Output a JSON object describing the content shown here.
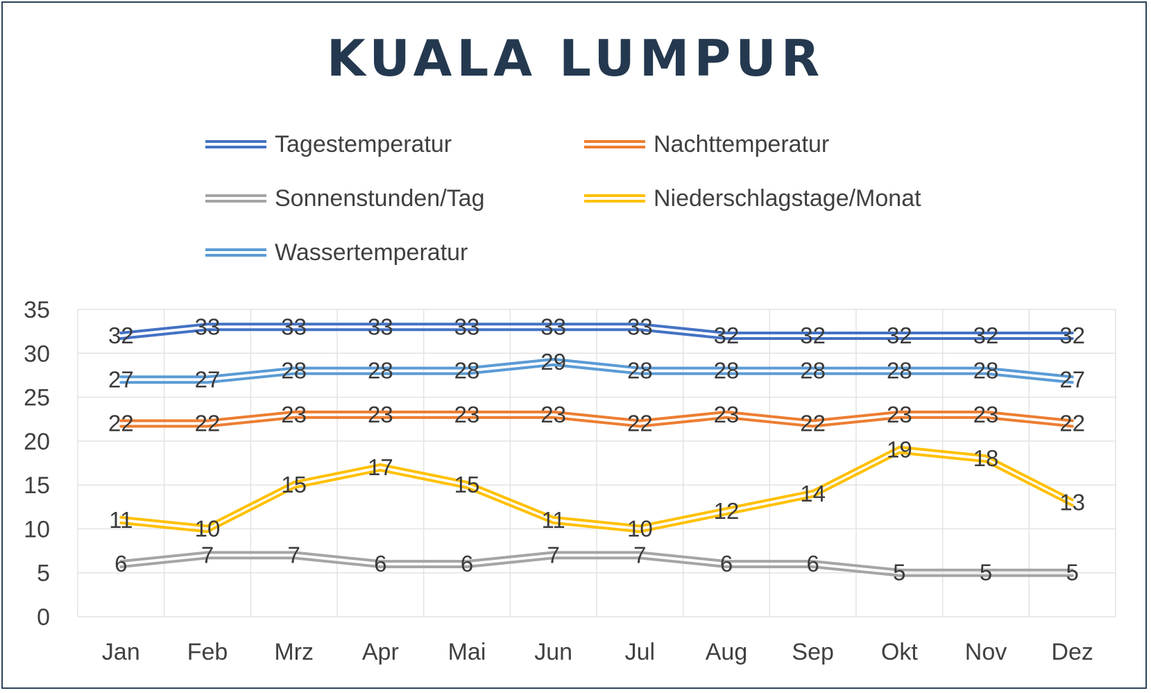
{
  "chart_data": {
    "type": "line",
    "title": "KUALA LUMPUR",
    "xlabel": "",
    "ylabel": "",
    "categories": [
      "Jan",
      "Feb",
      "Mrz",
      "Apr",
      "Mai",
      "Jun",
      "Jul",
      "Aug",
      "Sep",
      "Okt",
      "Nov",
      "Dez"
    ],
    "ylim": [
      0,
      35
    ],
    "yticks": [
      "0",
      "5",
      "10",
      "15",
      "20",
      "25",
      "30",
      "35"
    ],
    "grid": true,
    "legend_position": "top",
    "series": [
      {
        "name": "Tagestemperatur",
        "color": "#4472c4",
        "values": [
          32,
          33,
          33,
          33,
          33,
          33,
          33,
          32,
          32,
          32,
          32,
          32
        ]
      },
      {
        "name": "Nachttemperatur",
        "color": "#ed7d31",
        "values": [
          22,
          22,
          23,
          23,
          23,
          23,
          22,
          23,
          22,
          23,
          23,
          22
        ]
      },
      {
        "name": "Sonnenstunden/Tag",
        "color": "#a5a5a5",
        "values": [
          6,
          7,
          7,
          6,
          6,
          7,
          7,
          6,
          6,
          5,
          5,
          5
        ]
      },
      {
        "name": "Niederschlagstage/Monat",
        "color": "#ffc000",
        "values": [
          11,
          10,
          15,
          17,
          15,
          11,
          10,
          12,
          14,
          19,
          18,
          13
        ]
      },
      {
        "name": "Wassertemperatur",
        "color": "#5b9bd5",
        "values": [
          27,
          27,
          28,
          28,
          28,
          29,
          28,
          28,
          28,
          28,
          28,
          27
        ]
      }
    ]
  }
}
